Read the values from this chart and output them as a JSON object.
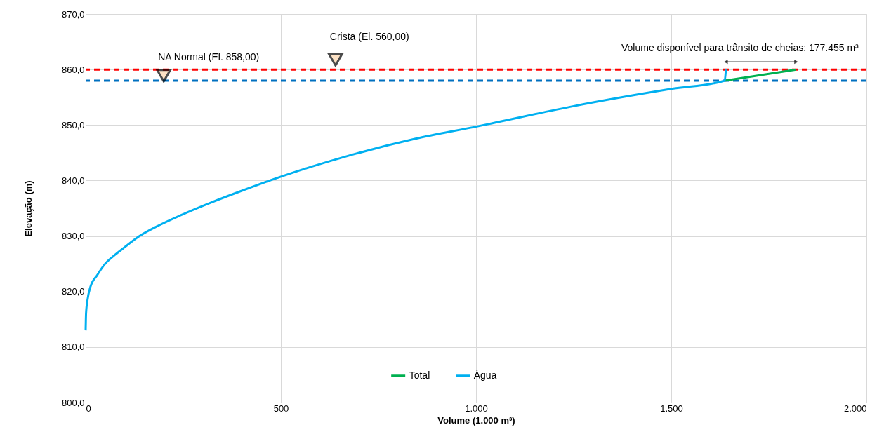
{
  "chart_data": {
    "type": "line",
    "xlabel": "Volume (1.000 m³)",
    "ylabel": "Elevação (m)",
    "xlim": [
      0,
      2000
    ],
    "xticks": [
      0,
      500,
      {
        "value": 1000,
        "label": "1.000"
      },
      {
        "value": 1500,
        "label": "1.500"
      },
      {
        "value": 2000,
        "label": "2.000"
      }
    ],
    "ylim": [
      800,
      870
    ],
    "yticks": [
      {
        "value": 800,
        "label": "800,0"
      },
      {
        "value": 810,
        "label": "810,0"
      },
      {
        "value": 820,
        "label": "820,0"
      },
      {
        "value": 830,
        "label": "830,0"
      },
      {
        "value": 840,
        "label": "840,0"
      },
      {
        "value": 850,
        "label": "850,0"
      },
      {
        "value": 860,
        "label": "860,0"
      },
      {
        "value": 870,
        "label": "870,0"
      }
    ],
    "grid": true,
    "legend": "bottom",
    "marker": "none",
    "line_style": "solid",
    "series": [
      {
        "name": "Total",
        "color": "#00b050",
        "x": [
          1637,
          1820
        ],
        "values": [
          858.0,
          860.0
        ]
      },
      {
        "name": "Água",
        "color": "#00b0f0",
        "x": [
          0,
          1,
          5,
          12,
          30,
          50,
          75,
          100,
          138,
          190,
          255,
          320,
          394,
          504,
          670,
          843,
          1006,
          1040,
          1250,
          1500,
          1637,
          1640
        ],
        "values": [
          813.0,
          816.0,
          818.6,
          820.8,
          823.0,
          825.0,
          826.6,
          828.0,
          830.0,
          832.0,
          834.1,
          836.0,
          838.0,
          840.8,
          844.4,
          847.5,
          849.8,
          850.3,
          853.4,
          856.5,
          858.0,
          860.0
        ]
      }
    ],
    "ref_lines": [
      {
        "axis": "y",
        "value": 860,
        "color": "#ff0000",
        "line_style": "dashed"
      },
      {
        "axis": "y",
        "value": 858,
        "color": "#0070c0",
        "line_style": "dashed"
      }
    ],
    "annotations": [
      {
        "text": "NA Normal (El. 858,00)",
        "x": 200,
        "y": 858
      },
      {
        "text": "Crista (El. 560,00)",
        "x": 640,
        "y": 860
      },
      {
        "text": "Volume disponível para trânsito de cheias: 177.455 m³",
        "x": 1730,
        "y": 860
      }
    ]
  }
}
